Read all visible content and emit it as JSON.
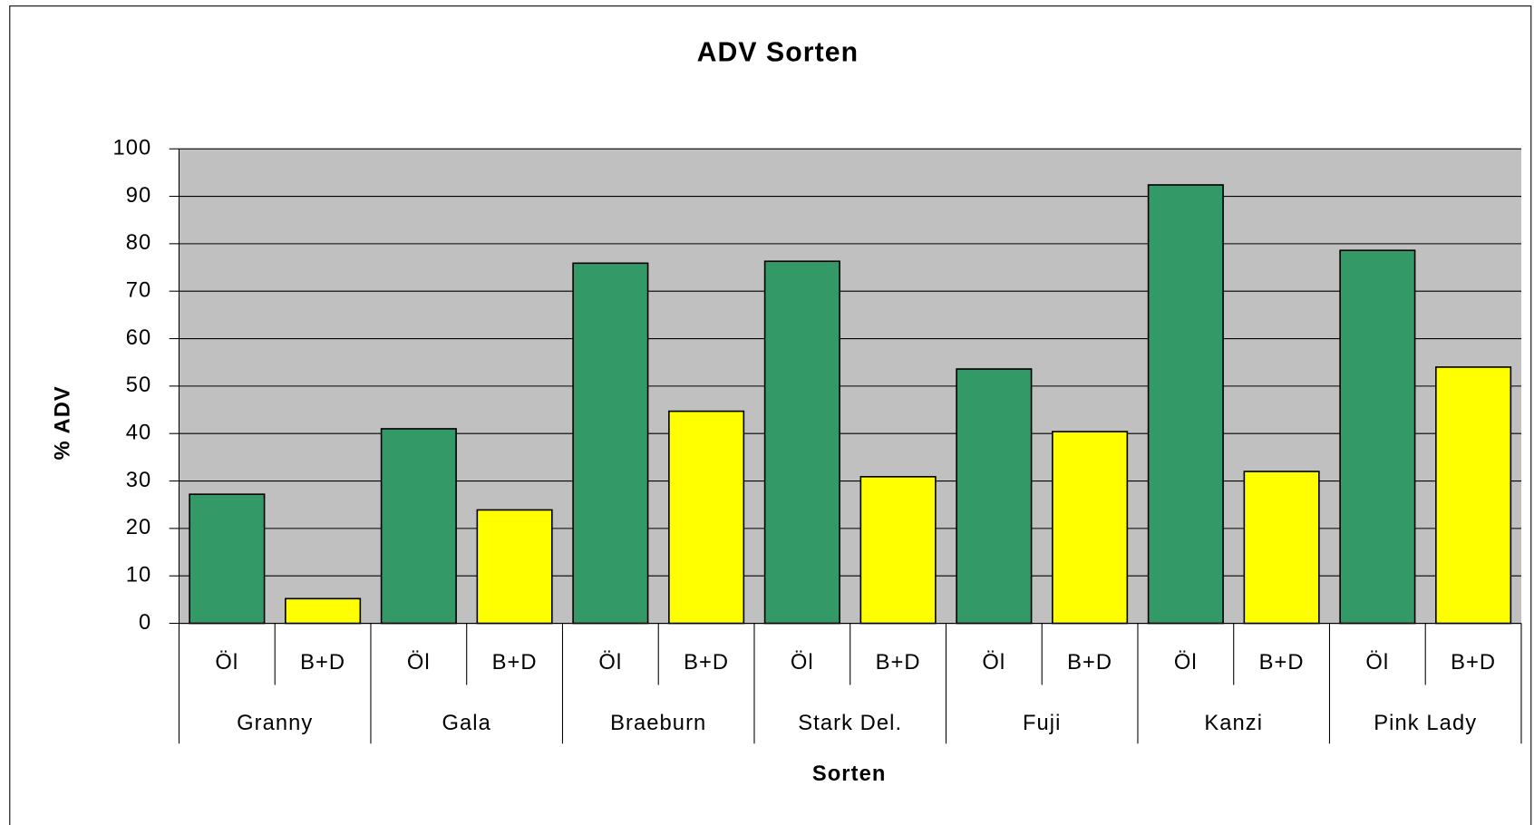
{
  "chart_data": {
    "type": "bar",
    "title": "ADV Sorten",
    "y_label": "% ADV",
    "x_label": "Sorten",
    "categories": [
      "Granny",
      "Gala",
      "Braeburn",
      "Stark Del.",
      "Fuji",
      "Kanzi",
      "Pink Lady"
    ],
    "series": [
      {
        "name": "Öl",
        "color": "#339966",
        "values": [
          27.2,
          41,
          75.9,
          76.3,
          53.6,
          92.4,
          78.6
        ]
      },
      {
        "name": "B+D",
        "color": "#ffff00",
        "values": [
          5.2,
          23.9,
          44.7,
          30.9,
          40.4,
          32,
          54
        ]
      }
    ],
    "ylim": [
      0,
      100
    ],
    "yticks": [
      0,
      10,
      20,
      30,
      40,
      50,
      60,
      70,
      80,
      90,
      100
    ],
    "grid": true
  }
}
